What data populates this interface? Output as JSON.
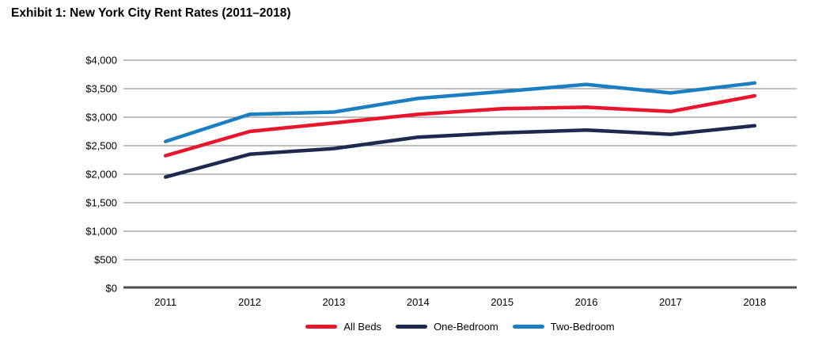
{
  "title": "Exhibit 1: New York City Rent Rates (2011–2018)",
  "chart_data": {
    "type": "line",
    "title": "Exhibit 1: New York City Rent Rates (2011–2018)",
    "xlabel": "",
    "ylabel": "",
    "categories": [
      "2011",
      "2012",
      "2013",
      "2014",
      "2015",
      "2016",
      "2017",
      "2018"
    ],
    "series": [
      {
        "name": "All Beds",
        "color": "#e8152d",
        "values": [
          2325,
          2750,
          2900,
          3050,
          3150,
          3175,
          3100,
          3375
        ]
      },
      {
        "name": "One-Bedroom",
        "color": "#1b2a4e",
        "values": [
          1950,
          2350,
          2450,
          2650,
          2725,
          2775,
          2700,
          2850
        ]
      },
      {
        "name": "Two-Bedroom",
        "color": "#1b7ec1",
        "values": [
          2575,
          3050,
          3090,
          3330,
          3450,
          3575,
          3425,
          3600
        ]
      }
    ],
    "ylim": [
      0,
      4000
    ],
    "ytick_step": 500,
    "ytick_labels": [
      "$0",
      "$500",
      "$1,000",
      "$1,500",
      "$2,000",
      "$2,500",
      "$3,000",
      "$3,500",
      "$4,000"
    ],
    "grid": true,
    "legend_position": "bottom",
    "colors": {
      "gridline": "#7d7d7d",
      "axis_line": "#4f4f4f",
      "text": "#000000"
    }
  }
}
